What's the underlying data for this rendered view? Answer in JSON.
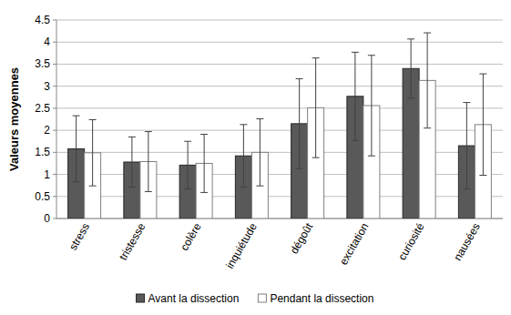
{
  "chart_data": {
    "type": "bar",
    "y_label": "Valeurs moyennes",
    "categories": [
      "stress",
      "tristesse",
      "colère",
      "inquiétude",
      "dégoût",
      "excitation",
      "curiosité",
      "nausées"
    ],
    "series": [
      {
        "name": "Avant la dissection",
        "color": "#595959",
        "values": [
          1.58,
          1.28,
          1.21,
          1.42,
          2.15,
          2.77,
          3.4,
          1.65
        ],
        "errors": [
          0.75,
          0.57,
          0.54,
          0.71,
          1.02,
          1.0,
          0.67,
          0.98
        ]
      },
      {
        "name": "Pendant la dissection",
        "color": "#ffffff",
        "values": [
          1.49,
          1.29,
          1.25,
          1.5,
          2.51,
          2.56,
          3.13,
          2.13
        ],
        "errors": [
          0.75,
          0.68,
          0.66,
          0.76,
          1.13,
          1.14,
          1.08,
          1.15
        ]
      }
    ],
    "ylim": [
      0,
      4.5
    ],
    "yticks": [
      0,
      0.5,
      1,
      1.5,
      2,
      2.5,
      3,
      3.5,
      4,
      4.5
    ],
    "grid": true,
    "legend": "bottom"
  }
}
